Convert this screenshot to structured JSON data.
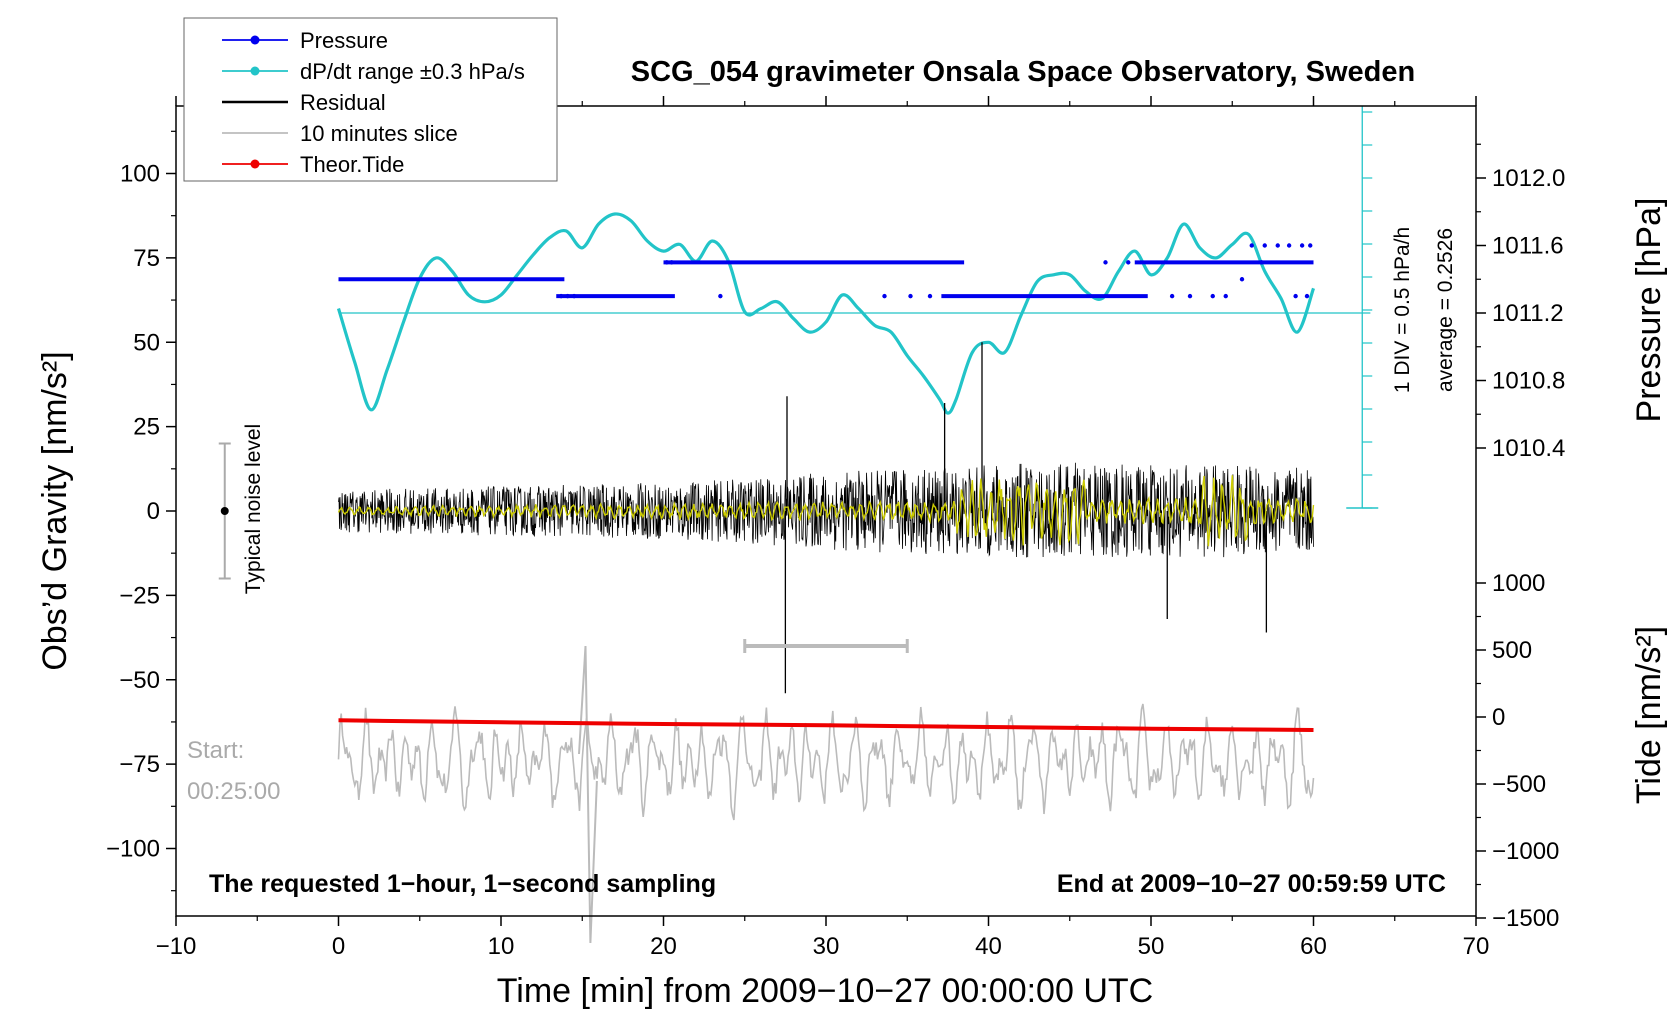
{
  "colors": {
    "pressure": "#0000ee",
    "dpdt": "#22c4c8",
    "residual": "#000000",
    "slice": "#bbbbbb",
    "tide": "#ee0000",
    "filtered": "#cccc00",
    "noise": "#aaaaaa"
  },
  "chart_data": {
    "type": "line",
    "title": "SCG_054 gravimeter Onsala Space Observatory, Sweden",
    "xlabel": "Time [min] from 2009−10−27 00:00:00 UTC",
    "ylabel_left": "Obs’d Gravity [nm/s²]",
    "ylabel_right_pressure": "Pressure [hPa]",
    "ylabel_right_tide": "Tide [nm/s²]",
    "xlim": [
      -10,
      70
    ],
    "ylim_left": [
      -120,
      120
    ],
    "x_ticks": [
      "−10",
      "0",
      "10",
      "20",
      "30",
      "40",
      "50",
      "60",
      "70"
    ],
    "x_tick_values": [
      -10,
      0,
      10,
      20,
      30,
      40,
      50,
      60,
      70
    ],
    "y_ticks_left": [
      "100",
      "75",
      "50",
      "25",
      "0",
      "−25",
      "−50",
      "−75",
      "−100"
    ],
    "y_tick_values_left": [
      100,
      75,
      50,
      25,
      0,
      -25,
      -50,
      -75,
      -100
    ],
    "pressure_axis": {
      "ticks": [
        "1012.0",
        "1011.6",
        "1011.2",
        "1010.8",
        "1010.4"
      ],
      "tick_values": [
        1012.0,
        1011.6,
        1011.2,
        1010.8,
        1010.4
      ]
    },
    "tide_axis": {
      "ticks": [
        "1000",
        "500",
        "0",
        "−500",
        "−1000",
        "−1500"
      ],
      "tick_values": [
        1000,
        500,
        0,
        -500,
        -1000,
        -1500
      ]
    },
    "legend": [
      {
        "label": "Pressure",
        "color": "#0000ee",
        "style": "line-dot"
      },
      {
        "label": "dP/dt range ±0.3 hPa/s",
        "color": "#22c4c8",
        "style": "line-dot"
      },
      {
        "label": "Residual",
        "color": "#000000",
        "style": "line"
      },
      {
        "label": "10 minutes slice",
        "color": "#bbbbbb",
        "style": "line"
      },
      {
        "label": "Theor.Tide",
        "color": "#ee0000",
        "style": "line-dot"
      }
    ],
    "legend_position": "top-left",
    "series": [
      {
        "name": "Pressure",
        "unit": "hPa",
        "segments": [
          {
            "x0": 0,
            "x1": 13.9,
            "value": 1011.4
          },
          {
            "x0": 13.4,
            "x1": 20.7,
            "value": 1011.3
          },
          {
            "x0": 20.0,
            "x1": 38.5,
            "value": 1011.5
          },
          {
            "x0": 37.1,
            "x1": 49.8,
            "value": 1011.3
          },
          {
            "x0": 49.0,
            "x1": 60.0,
            "value": 1011.5
          }
        ]
      },
      {
        "name": "dP/dt range ±0.3 hPa/s",
        "unit": "left-axis units",
        "x": [
          0,
          1,
          2,
          3,
          4,
          5,
          6,
          7,
          8,
          9,
          10,
          11,
          12,
          13,
          14,
          15,
          16,
          17,
          18,
          19,
          20,
          21,
          22,
          23,
          24,
          25,
          26,
          27,
          28,
          29,
          30,
          31,
          32,
          33,
          34,
          35,
          36,
          37,
          37.5,
          38,
          39,
          40,
          41,
          42,
          43,
          44,
          45,
          46,
          47,
          48,
          49,
          50,
          51,
          52,
          53,
          54,
          55,
          56,
          57,
          58,
          59,
          60
        ],
        "y": [
          60,
          44,
          30,
          42,
          56,
          69,
          75,
          71,
          64,
          62,
          64,
          70,
          76,
          81,
          83,
          78,
          85,
          88,
          86,
          80,
          77,
          79,
          74,
          80,
          74,
          59,
          60,
          62,
          57,
          53,
          56,
          64,
          60,
          55,
          53,
          46,
          40,
          33,
          29,
          33,
          47,
          50,
          47,
          58,
          68,
          70,
          70,
          65,
          63,
          71,
          77,
          70,
          75,
          85,
          78,
          75,
          79,
          82,
          71,
          63,
          53,
          66
        ]
      },
      {
        "name": "Residual",
        "unit": "nm/s²",
        "amplitude_profile": {
          "x": [
            0,
            10,
            20,
            25,
            30,
            35,
            40,
            45,
            50,
            55,
            60
          ],
          "amp": [
            6,
            7,
            8,
            9,
            11,
            12,
            13,
            14,
            13,
            13,
            12
          ]
        },
        "spikes": [
          {
            "x": 27.5,
            "y": -54
          },
          {
            "x": 27.6,
            "y": 34
          },
          {
            "x": 39.6,
            "y": 50
          },
          {
            "x": 37.3,
            "y": 32
          },
          {
            "x": 51.0,
            "y": -32
          },
          {
            "x": 57.1,
            "y": -36
          }
        ]
      },
      {
        "name": "Theor.Tide",
        "unit": "nm/s² (tide axis)",
        "x": [
          0,
          10,
          20,
          30,
          40,
          50,
          60
        ],
        "y": [
          -62,
          -62.6,
          -63.1,
          -63.5,
          -64.0,
          -64.5,
          -64.9
        ]
      },
      {
        "name": "10 minutes slice",
        "unit": "left-axis units",
        "x_range": [
          0,
          60
        ],
        "center": -74,
        "typical_range": [
          -95,
          -57
        ],
        "extremes": [
          {
            "x": 15.2,
            "y": -40
          },
          {
            "x": 15.5,
            "y": -128
          }
        ]
      }
    ],
    "noise_bar": {
      "x": -7,
      "low": -20,
      "high": 20,
      "center": 0,
      "label": "Typical noise level"
    },
    "slice_marker": {
      "x0": 25,
      "x1": 35,
      "y": -40
    },
    "pressure_reference_line": {
      "value": 1011.2
    },
    "scale_bar": {
      "label": "1 DIV = 0.5 hPa/h",
      "average_label": "average = 0.2526"
    },
    "start_label_lines": [
      "Start:",
      "00:25:00"
    ],
    "bottom_left_note": "The requested 1−hour, 1−second sampling",
    "bottom_right_note": "End at 2009−10−27 00:59:59 UTC"
  }
}
